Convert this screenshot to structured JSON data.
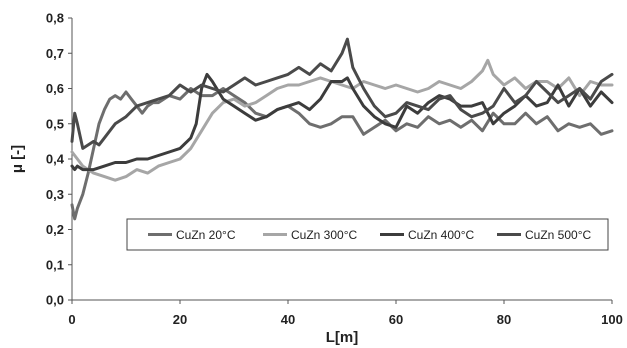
{
  "chart_data": {
    "type": "line",
    "xlabel": "L[m]",
    "ylabel": "μ [-]",
    "xlim": [
      0,
      100
    ],
    "ylim": [
      0,
      0.8
    ],
    "x_ticks": [
      "0",
      "20",
      "40",
      "60",
      "80",
      "100"
    ],
    "y_ticks": [
      "0,0",
      "0,1",
      "0,2",
      "0,3",
      "0,4",
      "0,5",
      "0,6",
      "0,7",
      "0,8"
    ],
    "grid": false,
    "legend_position": "inside-center-right",
    "series": [
      {
        "name": "CuZn 20°C",
        "color": "#6e6e6e",
        "x": [
          0,
          0.5,
          1,
          2,
          3,
          4,
          5,
          6,
          7,
          8,
          9,
          10,
          11,
          12,
          13,
          14,
          15,
          16,
          18,
          20,
          22,
          24,
          26,
          28,
          30,
          32,
          34,
          36,
          38,
          40,
          42,
          44,
          46,
          48,
          50,
          52,
          54,
          56,
          58,
          60,
          62,
          64,
          66,
          68,
          70,
          72,
          74,
          76,
          78,
          80,
          82,
          84,
          86,
          88,
          90,
          92,
          94,
          96,
          98,
          100
        ],
        "y": [
          0.27,
          0.23,
          0.26,
          0.3,
          0.36,
          0.43,
          0.5,
          0.54,
          0.57,
          0.58,
          0.57,
          0.59,
          0.57,
          0.55,
          0.53,
          0.55,
          0.56,
          0.56,
          0.58,
          0.57,
          0.6,
          0.58,
          0.58,
          0.6,
          0.58,
          0.56,
          0.53,
          0.52,
          0.54,
          0.55,
          0.53,
          0.5,
          0.49,
          0.5,
          0.52,
          0.52,
          0.47,
          0.49,
          0.51,
          0.48,
          0.5,
          0.49,
          0.52,
          0.5,
          0.51,
          0.49,
          0.51,
          0.48,
          0.53,
          0.5,
          0.5,
          0.53,
          0.5,
          0.52,
          0.48,
          0.5,
          0.49,
          0.5,
          0.47,
          0.48
        ]
      },
      {
        "name": "CuZn 300°C",
        "color": "#a6a6a6",
        "x": [
          0,
          1,
          2,
          4,
          6,
          8,
          10,
          12,
          14,
          16,
          18,
          20,
          22,
          24,
          26,
          28,
          30,
          32,
          34,
          36,
          38,
          40,
          42,
          44,
          46,
          48,
          50,
          52,
          54,
          56,
          58,
          60,
          62,
          64,
          66,
          68,
          70,
          72,
          74,
          76,
          77,
          78,
          80,
          82,
          84,
          86,
          88,
          90,
          92,
          94,
          96,
          98,
          100
        ],
        "y": [
          0.42,
          0.4,
          0.38,
          0.36,
          0.35,
          0.34,
          0.35,
          0.37,
          0.36,
          0.38,
          0.39,
          0.4,
          0.43,
          0.48,
          0.53,
          0.56,
          0.57,
          0.55,
          0.56,
          0.58,
          0.6,
          0.61,
          0.61,
          0.62,
          0.63,
          0.62,
          0.61,
          0.6,
          0.62,
          0.61,
          0.6,
          0.61,
          0.6,
          0.59,
          0.6,
          0.62,
          0.61,
          0.6,
          0.62,
          0.65,
          0.68,
          0.64,
          0.61,
          0.63,
          0.6,
          0.62,
          0.62,
          0.6,
          0.63,
          0.58,
          0.62,
          0.61,
          0.61
        ]
      },
      {
        "name": "CuZn 400°C",
        "color": "#3c3c3c",
        "x": [
          0,
          0.5,
          1,
          2,
          3,
          4,
          6,
          8,
          10,
          12,
          14,
          16,
          18,
          20,
          22,
          23,
          24,
          25,
          26,
          28,
          30,
          32,
          34,
          36,
          38,
          40,
          42,
          44,
          46,
          48,
          50,
          51,
          52,
          54,
          56,
          58,
          60,
          62,
          64,
          66,
          68,
          70,
          72,
          74,
          76,
          78,
          80,
          82,
          84,
          86,
          88,
          90,
          92,
          94,
          96,
          98,
          100
        ],
        "y": [
          0.38,
          0.37,
          0.38,
          0.37,
          0.37,
          0.37,
          0.38,
          0.39,
          0.39,
          0.4,
          0.4,
          0.41,
          0.42,
          0.43,
          0.46,
          0.5,
          0.6,
          0.64,
          0.62,
          0.57,
          0.55,
          0.53,
          0.51,
          0.52,
          0.54,
          0.55,
          0.56,
          0.54,
          0.57,
          0.62,
          0.62,
          0.63,
          0.6,
          0.55,
          0.52,
          0.5,
          0.49,
          0.55,
          0.53,
          0.56,
          0.58,
          0.57,
          0.55,
          0.55,
          0.56,
          0.5,
          0.53,
          0.55,
          0.58,
          0.55,
          0.56,
          0.61,
          0.55,
          0.6,
          0.55,
          0.59,
          0.56
        ]
      },
      {
        "name": "CuZn 500°C",
        "color": "#4a4a4a",
        "x": [
          0,
          0.5,
          1,
          2,
          3,
          4,
          5,
          6,
          8,
          10,
          12,
          14,
          16,
          18,
          20,
          22,
          24,
          26,
          28,
          30,
          32,
          34,
          36,
          38,
          40,
          42,
          44,
          46,
          48,
          50,
          51,
          52,
          54,
          56,
          58,
          60,
          62,
          64,
          66,
          68,
          70,
          72,
          74,
          76,
          78,
          80,
          82,
          84,
          86,
          88,
          90,
          92,
          94,
          96,
          98,
          100
        ],
        "y": [
          0.45,
          0.53,
          0.5,
          0.43,
          0.44,
          0.45,
          0.44,
          0.46,
          0.5,
          0.52,
          0.55,
          0.56,
          0.57,
          0.58,
          0.61,
          0.59,
          0.61,
          0.6,
          0.59,
          0.61,
          0.63,
          0.61,
          0.62,
          0.63,
          0.64,
          0.66,
          0.64,
          0.67,
          0.65,
          0.7,
          0.74,
          0.66,
          0.6,
          0.55,
          0.52,
          0.53,
          0.56,
          0.55,
          0.54,
          0.57,
          0.58,
          0.54,
          0.52,
          0.53,
          0.55,
          0.6,
          0.56,
          0.58,
          0.62,
          0.59,
          0.56,
          0.58,
          0.6,
          0.57,
          0.62,
          0.64
        ]
      }
    ]
  }
}
